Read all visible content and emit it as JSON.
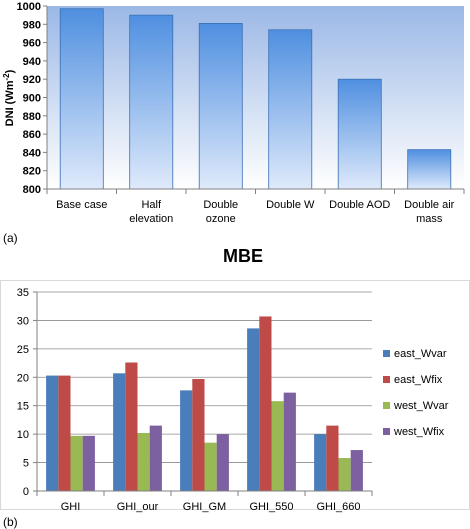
{
  "panel_a_label": "(a)",
  "panel_b_label": "(b)",
  "colors": {
    "bar_top": "#4f8fe0",
    "bar_bottom": "#dfeafb",
    "bar_stroke": "#3a6fb5",
    "plot_top": "#9bb8e6",
    "plot_bottom": "#ffffff"
  },
  "chart_data": [
    {
      "type": "bar",
      "title": "",
      "xlabel": "",
      "ylabel": "DNI (Wm",
      "ylabel_sup": "-2",
      "ylabel_close": ")",
      "ylim": [
        800,
        1000
      ],
      "yticks": [
        800,
        820,
        840,
        860,
        880,
        900,
        920,
        940,
        960,
        980,
        1000
      ],
      "categories": [
        [
          "Base case"
        ],
        [
          "Half",
          "elevation"
        ],
        [
          "Double",
          "ozone"
        ],
        [
          "Double W"
        ],
        [
          "Double AOD"
        ],
        [
          "Double air",
          "mass"
        ]
      ],
      "values": [
        997,
        990,
        981,
        974,
        920,
        843
      ],
      "grid": false,
      "legend": "none"
    },
    {
      "type": "bar",
      "title": "MBE",
      "xlabel": "",
      "ylabel": "",
      "ylim": [
        0,
        35
      ],
      "yticks": [
        0,
        5,
        10,
        15,
        20,
        25,
        30,
        35
      ],
      "categories": [
        "GHI",
        "GHI_our",
        "GHI_GM",
        "GHI_550",
        "GHI_660"
      ],
      "series": [
        {
          "name": "east_Wvar",
          "color": "#4a7ebb",
          "values": [
            20.3,
            20.7,
            17.7,
            28.6,
            10.0
          ]
        },
        {
          "name": "east_Wfix",
          "color": "#be4b48",
          "values": [
            20.3,
            22.6,
            19.7,
            30.7,
            11.5
          ]
        },
        {
          "name": "west_Wvar",
          "color": "#98b954",
          "values": [
            9.7,
            10.2,
            8.5,
            15.8,
            5.8
          ]
        },
        {
          "name": "west_Wfix",
          "color": "#7d60a0",
          "values": [
            9.7,
            11.5,
            10.0,
            17.3,
            7.2
          ]
        }
      ],
      "grid": true,
      "legend": "right"
    }
  ]
}
